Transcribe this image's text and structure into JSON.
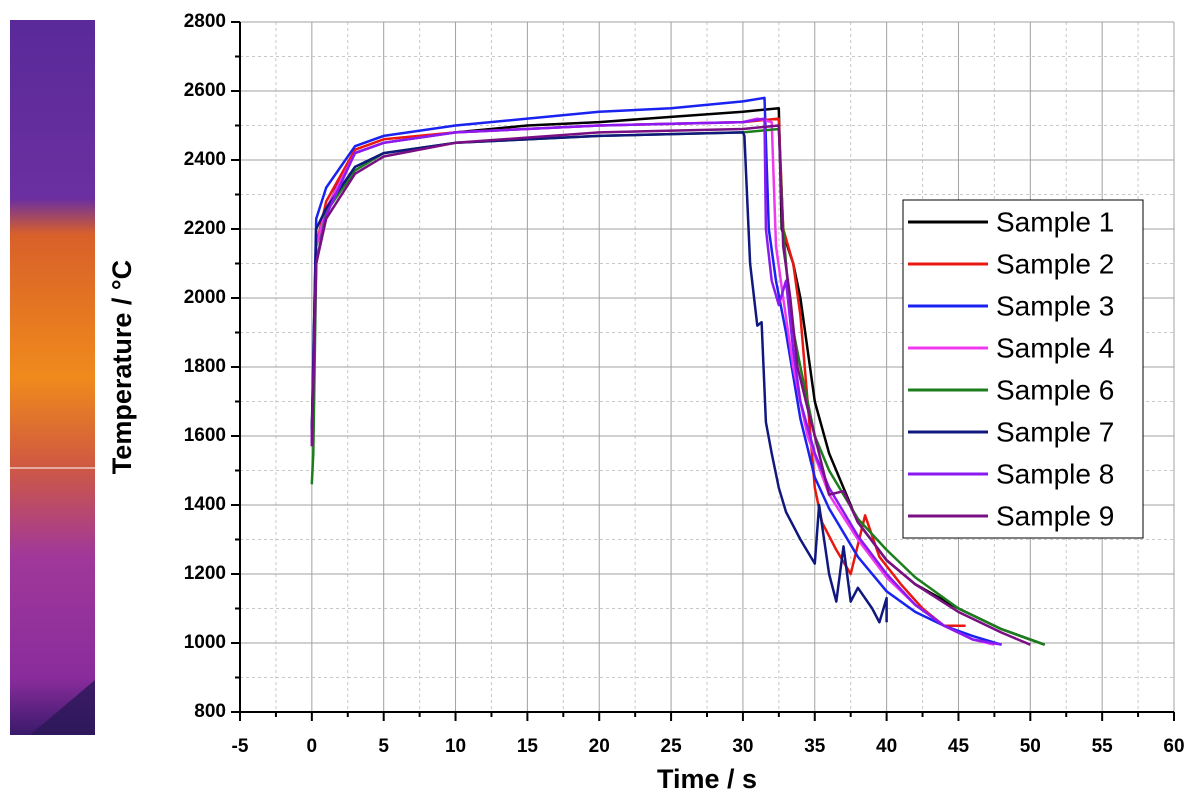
{
  "chart_data": {
    "type": "line",
    "xlabel": "Time / s",
    "ylabel": "Temperature / °C",
    "xlim": [
      -5,
      60
    ],
    "xticks": [
      -5,
      0,
      5,
      10,
      15,
      20,
      25,
      30,
      35,
      40,
      45,
      50,
      55,
      60
    ],
    "ylim": [
      800,
      2800
    ],
    "yticks": [
      800,
      1000,
      1200,
      1400,
      1600,
      1800,
      2000,
      2200,
      2400,
      2600,
      2800
    ],
    "grid": true,
    "legend": "right",
    "series": [
      {
        "name": "Sample 1",
        "color": "#000000",
        "x": [
          0,
          0.3,
          1,
          2,
          3,
          5,
          10,
          15,
          20,
          25,
          30,
          32.5,
          32.7,
          33.5,
          34,
          35,
          36,
          38,
          40,
          42,
          45,
          48,
          51
        ],
        "values": [
          1600,
          2150,
          2250,
          2350,
          2420,
          2450,
          2480,
          2500,
          2510,
          2525,
          2540,
          2550,
          2200,
          2100,
          2000,
          1700,
          1550,
          1350,
          1240,
          1170,
          1100,
          1040,
          995
        ]
      },
      {
        "name": "Sample 2",
        "color": "#e8170f",
        "x": [
          0,
          0.3,
          1,
          3,
          5,
          10,
          20,
          30,
          32.5,
          32.8,
          33.5,
          34,
          34.5,
          35,
          35.5,
          36.5,
          37.5,
          38.5,
          39.5,
          41,
          42.5,
          44,
          45.5
        ],
        "values": [
          1600,
          2150,
          2280,
          2430,
          2460,
          2480,
          2500,
          2510,
          2520,
          2200,
          2100,
          1950,
          1700,
          1450,
          1350,
          1270,
          1200,
          1370,
          1250,
          1170,
          1100,
          1050,
          1050
        ]
      },
      {
        "name": "Sample 3",
        "color": "#1a22f0",
        "x": [
          0,
          0.3,
          1,
          2,
          3,
          5,
          10,
          15,
          20,
          25,
          30,
          31.5,
          31.8,
          32.3,
          33,
          34,
          35,
          36,
          38,
          40,
          42,
          44,
          46,
          48
        ],
        "values": [
          1600,
          2230,
          2320,
          2380,
          2440,
          2470,
          2500,
          2520,
          2540,
          2550,
          2570,
          2580,
          2200,
          2050,
          1900,
          1650,
          1480,
          1390,
          1250,
          1150,
          1090,
          1050,
          1020,
          995
        ]
      },
      {
        "name": "Sample 4",
        "color": "#f038f0",
        "x": [
          0,
          0.3,
          1,
          3,
          5,
          10,
          20,
          30,
          31,
          32,
          32.3,
          32.8,
          33.5,
          34.5,
          36,
          38,
          40,
          42,
          44,
          46,
          47.5
        ],
        "values": [
          1600,
          2150,
          2260,
          2420,
          2450,
          2480,
          2500,
          2510,
          2520,
          2510,
          2150,
          2000,
          1800,
          1600,
          1430,
          1300,
          1190,
          1110,
          1050,
          1010,
          995
        ]
      },
      {
        "name": "Sample 6",
        "color": "#1c7d1c",
        "x": [
          0,
          0.1,
          0.3,
          1,
          3,
          5,
          10,
          20,
          30,
          32.5,
          32.8,
          33.3,
          34,
          35,
          36,
          38,
          40,
          42,
          45,
          48,
          51
        ],
        "values": [
          1460,
          1550,
          2100,
          2250,
          2370,
          2420,
          2450,
          2470,
          2480,
          2490,
          2200,
          1950,
          1800,
          1600,
          1500,
          1360,
          1270,
          1190,
          1100,
          1040,
          995
        ]
      },
      {
        "name": "Sample 7",
        "color": "#10187e",
        "x": [
          0,
          0.3,
          1,
          3,
          5,
          10,
          20,
          30,
          30.1,
          30.5,
          31,
          31.3,
          31.6,
          32,
          32.5,
          33,
          34,
          35,
          35.3,
          36,
          36.5,
          37,
          37.5,
          38,
          39,
          39.5,
          40,
          40
        ],
        "values": [
          1620,
          2200,
          2260,
          2380,
          2420,
          2450,
          2470,
          2480,
          2470,
          2100,
          1920,
          1930,
          1640,
          1550,
          1450,
          1380,
          1300,
          1230,
          1400,
          1200,
          1120,
          1280,
          1120,
          1160,
          1100,
          1060,
          1130,
          1060
        ]
      },
      {
        "name": "Sample 8",
        "color": "#8a1af0",
        "x": [
          0,
          0.3,
          1,
          3,
          5,
          10,
          20,
          30,
          31.5,
          31.6,
          32,
          32.5,
          33,
          33.5,
          34,
          35,
          36,
          38,
          40,
          42,
          44,
          46,
          48
        ],
        "values": [
          1580,
          2100,
          2240,
          2420,
          2450,
          2480,
          2500,
          2510,
          2520,
          2200,
          2050,
          1980,
          2050,
          1850,
          1700,
          1550,
          1450,
          1310,
          1200,
          1110,
          1050,
          1010,
          995
        ]
      },
      {
        "name": "Sample 9",
        "color": "#7a0f84",
        "x": [
          0,
          0.3,
          1,
          3,
          5,
          10,
          20,
          30,
          32.5,
          32.8,
          33.3,
          33.8,
          34.5,
          35,
          36,
          37,
          38,
          40,
          42,
          45,
          48,
          50
        ],
        "values": [
          1570,
          2100,
          2230,
          2360,
          2410,
          2450,
          2480,
          2490,
          2500,
          2150,
          2000,
          1800,
          1680,
          1600,
          1430,
          1440,
          1350,
          1240,
          1170,
          1090,
          1030,
          995
        ]
      }
    ]
  }
}
